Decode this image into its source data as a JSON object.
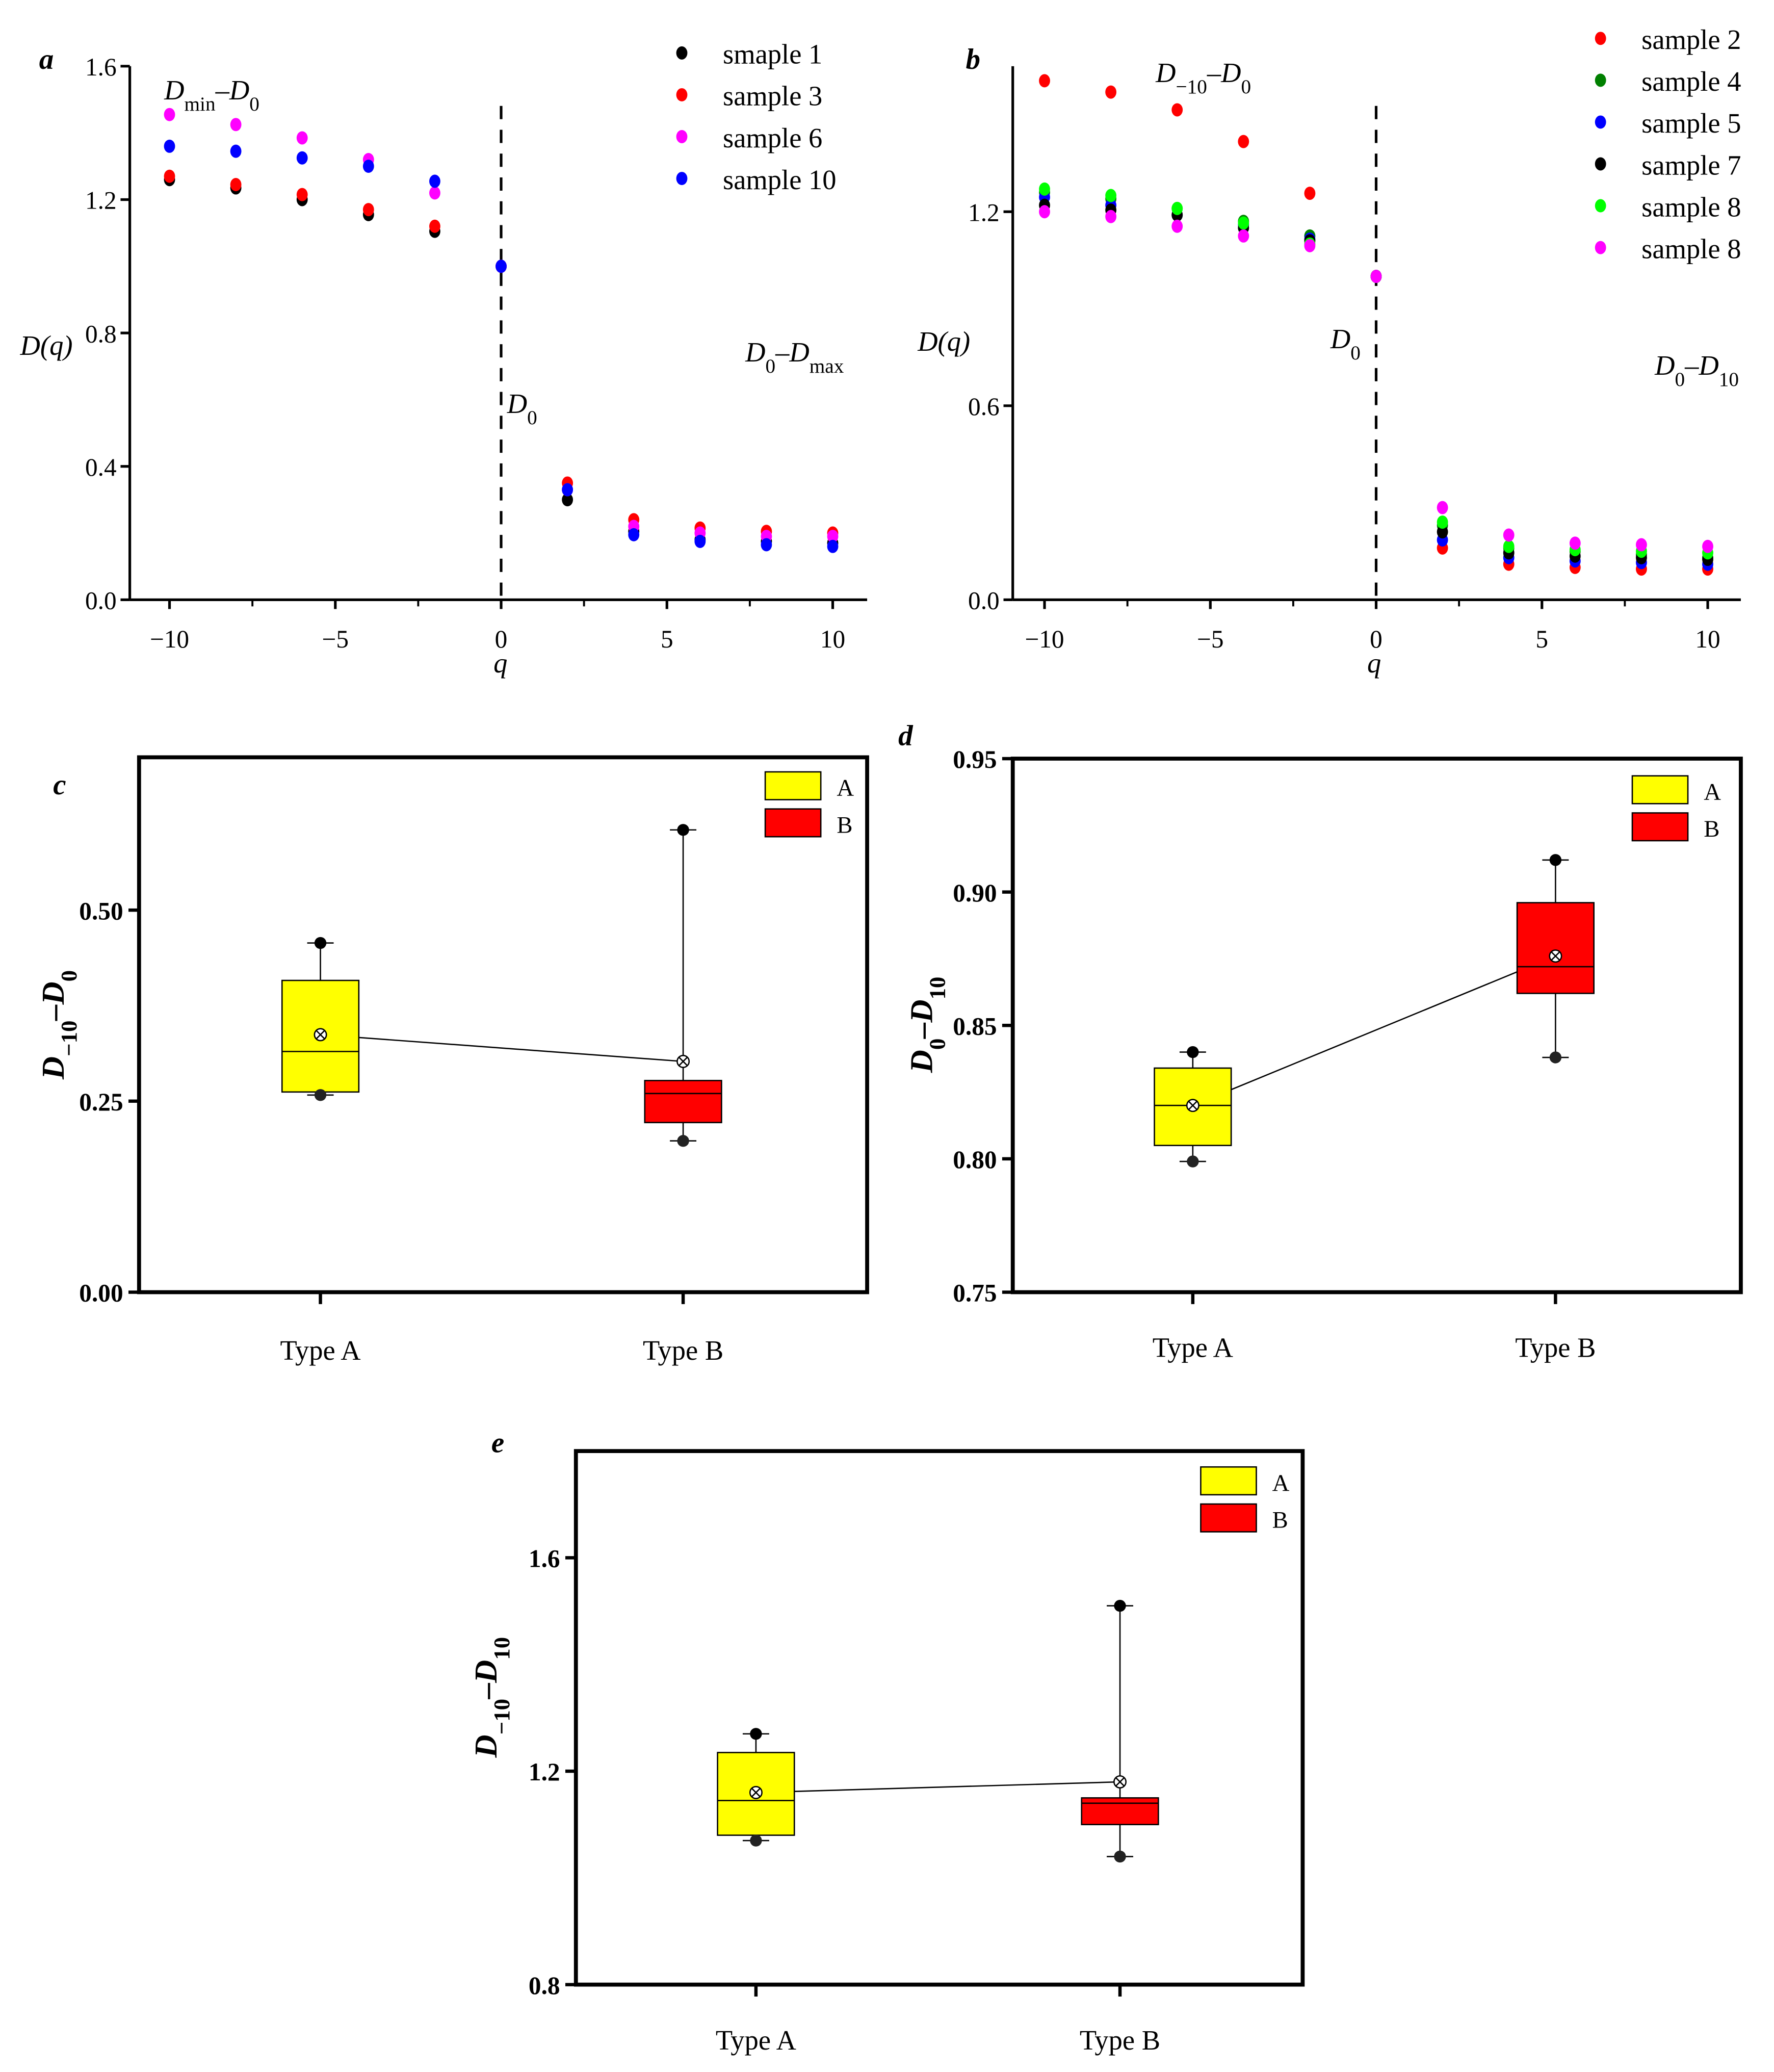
{
  "chart_data": [
    {
      "panel": "a",
      "type": "scatter",
      "xlabel": "q",
      "ylabel": "D(q)",
      "xlim": [
        -11.2,
        11
      ],
      "ylim": [
        0,
        1.6
      ],
      "xticks": [
        -10,
        -5,
        0,
        5,
        10
      ],
      "xtick_labels": [
        "−10",
        "−5",
        "0",
        "5",
        "10"
      ],
      "yticks": [
        0,
        0.4,
        0.8,
        1.2,
        1.6
      ],
      "ytick_labels": [
        "0.0",
        "0.4",
        "0.8",
        "1.2",
        "1.6"
      ],
      "annotations": {
        "left_main": "D",
        "left_sub": "min",
        "left_mid": "–D",
        "left_sub2": "0",
        "right_main": "D",
        "right_sub": "0",
        "right_mid": "–D",
        "right_sub2": "max",
        "center_main": "D",
        "center_sub": "0"
      },
      "legend_position": "top-right",
      "x": [
        -10,
        -8,
        -6,
        -4,
        -2,
        0,
        2,
        4,
        6,
        8,
        10
      ],
      "series": [
        {
          "name": "smaple 1",
          "color": "#000000",
          "values": [
            1.26,
            1.235,
            1.2,
            1.155,
            1.105,
            1.0,
            0.3,
            0.205,
            0.18,
            0.175,
            0.17
          ]
        },
        {
          "name": "sample 3",
          "color": "#ff0000",
          "values": [
            1.27,
            1.245,
            1.215,
            1.17,
            1.12,
            1.0,
            0.35,
            0.24,
            0.215,
            0.205,
            0.2
          ]
        },
        {
          "name": "sample 6",
          "color": "#ff00ff",
          "values": [
            1.455,
            1.425,
            1.385,
            1.32,
            1.22,
            1.0,
            0.33,
            0.22,
            0.2,
            0.19,
            0.19
          ]
        },
        {
          "name": "sample 10",
          "color": "#0000ff",
          "values": [
            1.36,
            1.345,
            1.325,
            1.3,
            1.255,
            1.0,
            0.33,
            0.195,
            0.175,
            0.165,
            0.16
          ]
        }
      ]
    },
    {
      "panel": "b",
      "type": "scatter",
      "xlabel": "q",
      "ylabel": "D(q)",
      "xlim": [
        -11,
        11
      ],
      "ylim": [
        0,
        1.65
      ],
      "xticks": [
        -10,
        -5,
        0,
        5,
        10
      ],
      "xtick_labels": [
        "−10",
        "−5",
        "0",
        "5",
        "10"
      ],
      "yticks": [
        0,
        0.6,
        1.2
      ],
      "ytick_labels": [
        "0.0",
        "0.6",
        "1.2"
      ],
      "annotations": {
        "left_main": "D",
        "left_sub": "−10",
        "left_mid": "–D",
        "left_sub2": "0",
        "right_main": "D",
        "right_sub": "0",
        "right_mid": "–D",
        "right_sub2": "10",
        "center_main": "D",
        "center_sub": "0"
      },
      "legend_position": "top-right",
      "x": [
        -10,
        -8,
        -6,
        -4,
        -2,
        0,
        2,
        4,
        6,
        8,
        10
      ],
      "series": [
        {
          "name": "sample 2",
          "color": "#ff0000",
          "values": [
            1.605,
            1.57,
            1.515,
            1.417,
            1.257,
            1.0,
            0.16,
            0.11,
            0.1,
            0.095,
            0.095
          ]
        },
        {
          "name": "sample 4",
          "color": "#008000",
          "values": [
            1.26,
            1.24,
            1.21,
            1.17,
            1.125,
            1.0,
            0.23,
            0.16,
            0.15,
            0.14,
            0.13
          ]
        },
        {
          "name": "sample 5",
          "color": "#0000ff",
          "values": [
            1.245,
            1.22,
            1.19,
            1.16,
            1.115,
            1.0,
            0.185,
            0.13,
            0.12,
            0.115,
            0.11
          ]
        },
        {
          "name": "sample 7",
          "color": "#000000",
          "values": [
            1.22,
            1.205,
            1.19,
            1.15,
            1.11,
            1.0,
            0.21,
            0.145,
            0.135,
            0.13,
            0.125
          ]
        },
        {
          "name": "sample 8",
          "color": "#00ff00",
          "values": [
            1.27,
            1.25,
            1.21,
            1.165,
            1.1,
            1.0,
            0.24,
            0.165,
            0.155,
            0.15,
            0.145
          ]
        },
        {
          "name": "sample 8",
          "color": "#ff00ff",
          "values": [
            1.2,
            1.185,
            1.155,
            1.125,
            1.095,
            1.0,
            0.285,
            0.2,
            0.175,
            0.17,
            0.165
          ]
        }
      ]
    },
    {
      "panel": "c",
      "type": "box",
      "ylabel_main": "D",
      "ylabel_sub": "−10",
      "ylabel_mid": "–D",
      "ylabel_sub2": "0",
      "ylim": [
        0,
        0.7
      ],
      "yticks": [
        0,
        0.25,
        0.5
      ],
      "ytick_labels": [
        "0.00",
        "0.25",
        "0.50"
      ],
      "categories": [
        "Type A",
        "Type B"
      ],
      "legend": [
        {
          "label": "A",
          "color": "#ffff00"
        },
        {
          "label": "B",
          "color": "#ff0000"
        }
      ],
      "legend_position": "top-right",
      "boxes": [
        {
          "q1": 0.262,
          "median": 0.315,
          "q3": 0.408,
          "mean": 0.337,
          "min": 0.258,
          "max": 0.457,
          "color": "#ffff00"
        },
        {
          "q1": 0.222,
          "median": 0.26,
          "q3": 0.277,
          "mean": 0.302,
          "min": 0.198,
          "max": 0.605,
          "color": "#ff0000"
        }
      ]
    },
    {
      "panel": "d",
      "type": "box",
      "ylabel_main": "D",
      "ylabel_sub": "0",
      "ylabel_mid": "–D",
      "ylabel_sub2": "10",
      "ylim": [
        0.75,
        0.95
      ],
      "yticks": [
        0.75,
        0.8,
        0.85,
        0.9,
        0.95
      ],
      "ytick_labels": [
        "0.75",
        "0.80",
        "0.85",
        "0.90",
        "0.95"
      ],
      "categories": [
        "Type A",
        "Type B"
      ],
      "legend": [
        {
          "label": "A",
          "color": "#ffff00"
        },
        {
          "label": "B",
          "color": "#ff0000"
        }
      ],
      "legend_position": "top-right",
      "boxes": [
        {
          "q1": 0.805,
          "median": 0.82,
          "q3": 0.834,
          "mean": 0.82,
          "min": 0.799,
          "max": 0.84,
          "color": "#ffff00"
        },
        {
          "q1": 0.862,
          "median": 0.872,
          "q3": 0.896,
          "mean": 0.876,
          "min": 0.838,
          "max": 0.912,
          "color": "#ff0000"
        }
      ]
    },
    {
      "panel": "e",
      "type": "box",
      "ylabel_main": "D",
      "ylabel_sub": "−10",
      "ylabel_mid": "–D",
      "ylabel_sub2": "10",
      "ylim": [
        0.8,
        1.8
      ],
      "yticks": [
        0.8,
        1.2,
        1.6
      ],
      "ytick_labels": [
        "0.8",
        "1.2",
        "1.6"
      ],
      "categories": [
        "Type A",
        "Type B"
      ],
      "legend": [
        {
          "label": "A",
          "color": "#ffff00"
        },
        {
          "label": "B",
          "color": "#ff0000"
        }
      ],
      "legend_position": "top-right",
      "boxes": [
        {
          "q1": 1.08,
          "median": 1.145,
          "q3": 1.235,
          "mean": 1.16,
          "min": 1.07,
          "max": 1.27,
          "color": "#ffff00"
        },
        {
          "q1": 1.1,
          "median": 1.14,
          "q3": 1.15,
          "mean": 1.18,
          "min": 1.04,
          "max": 1.51,
          "color": "#ff0000"
        }
      ]
    }
  ]
}
